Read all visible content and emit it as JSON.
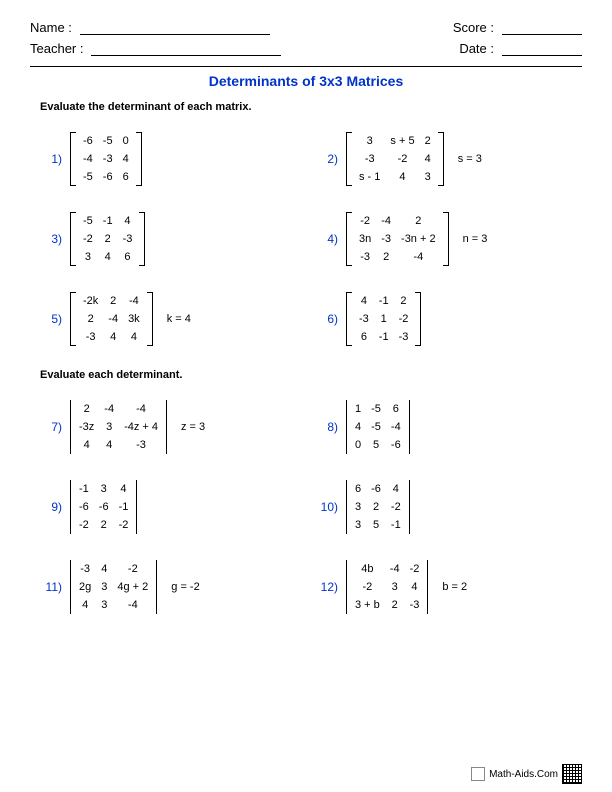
{
  "header": {
    "name_label": "Name :",
    "teacher_label": "Teacher :",
    "score_label": "Score :",
    "date_label": "Date :"
  },
  "title": "Determinants of 3x3 Matrices",
  "instruction1": "Evaluate the determinant of each matrix.",
  "instruction2": "Evaluate each determinant.",
  "footer_text": "Math-Aids.Com",
  "colors": {
    "accent": "#0033cc",
    "text": "#000000",
    "background": "#ffffff"
  },
  "problems_section1": [
    {
      "num": "1)",
      "style": "sq",
      "rows": [
        [
          "-6",
          "-5",
          "0"
        ],
        [
          "-4",
          "-3",
          "4"
        ],
        [
          "-5",
          "-6",
          "6"
        ]
      ],
      "extra": ""
    },
    {
      "num": "2)",
      "style": "sq",
      "rows": [
        [
          "3",
          "s + 5",
          "2"
        ],
        [
          "-3",
          "-2",
          "4"
        ],
        [
          "s - 1",
          "4",
          "3"
        ]
      ],
      "extra": "s = 3"
    },
    {
      "num": "3)",
      "style": "sq",
      "rows": [
        [
          "-5",
          "-1",
          "4"
        ],
        [
          "-2",
          "2",
          "-3"
        ],
        [
          "3",
          "4",
          "6"
        ]
      ],
      "extra": ""
    },
    {
      "num": "4)",
      "style": "sq",
      "rows": [
        [
          "-2",
          "-4",
          "2"
        ],
        [
          "3n",
          "-3",
          "-3n + 2"
        ],
        [
          "-3",
          "2",
          "-4"
        ]
      ],
      "extra": "n = 3"
    },
    {
      "num": "5)",
      "style": "sq",
      "rows": [
        [
          "-2k",
          "2",
          "-4"
        ],
        [
          "2",
          "-4",
          "3k"
        ],
        [
          "-3",
          "4",
          "4"
        ]
      ],
      "extra": "k = 4"
    },
    {
      "num": "6)",
      "style": "sq",
      "rows": [
        [
          "4",
          "-1",
          "2"
        ],
        [
          "-3",
          "1",
          "-2"
        ],
        [
          "6",
          "-1",
          "-3"
        ]
      ],
      "extra": ""
    }
  ],
  "problems_section2": [
    {
      "num": "7)",
      "style": "det",
      "rows": [
        [
          "2",
          "-4",
          "-4"
        ],
        [
          "-3z",
          "3",
          "-4z + 4"
        ],
        [
          "4",
          "4",
          "-3"
        ]
      ],
      "extra": "z = 3"
    },
    {
      "num": "8)",
      "style": "det",
      "rows": [
        [
          "1",
          "-5",
          "6"
        ],
        [
          "4",
          "-5",
          "-4"
        ],
        [
          "0",
          "5",
          "-6"
        ]
      ],
      "extra": ""
    },
    {
      "num": "9)",
      "style": "det",
      "rows": [
        [
          "-1",
          "3",
          "4"
        ],
        [
          "-6",
          "-6",
          "-1"
        ],
        [
          "-2",
          "2",
          "-2"
        ]
      ],
      "extra": ""
    },
    {
      "num": "10)",
      "style": "det",
      "rows": [
        [
          "6",
          "-6",
          "4"
        ],
        [
          "3",
          "2",
          "-2"
        ],
        [
          "3",
          "5",
          "-1"
        ]
      ],
      "extra": ""
    },
    {
      "num": "11)",
      "style": "det",
      "rows": [
        [
          "-3",
          "4",
          "-2"
        ],
        [
          "2g",
          "3",
          "4g + 2"
        ],
        [
          "4",
          "3",
          "-4"
        ]
      ],
      "extra": "g = -2"
    },
    {
      "num": "12)",
      "style": "det",
      "rows": [
        [
          "4b",
          "-4",
          "-2"
        ],
        [
          "-2",
          "3",
          "4"
        ],
        [
          "3 + b",
          "2",
          "-3"
        ]
      ],
      "extra": "b = 2"
    }
  ]
}
